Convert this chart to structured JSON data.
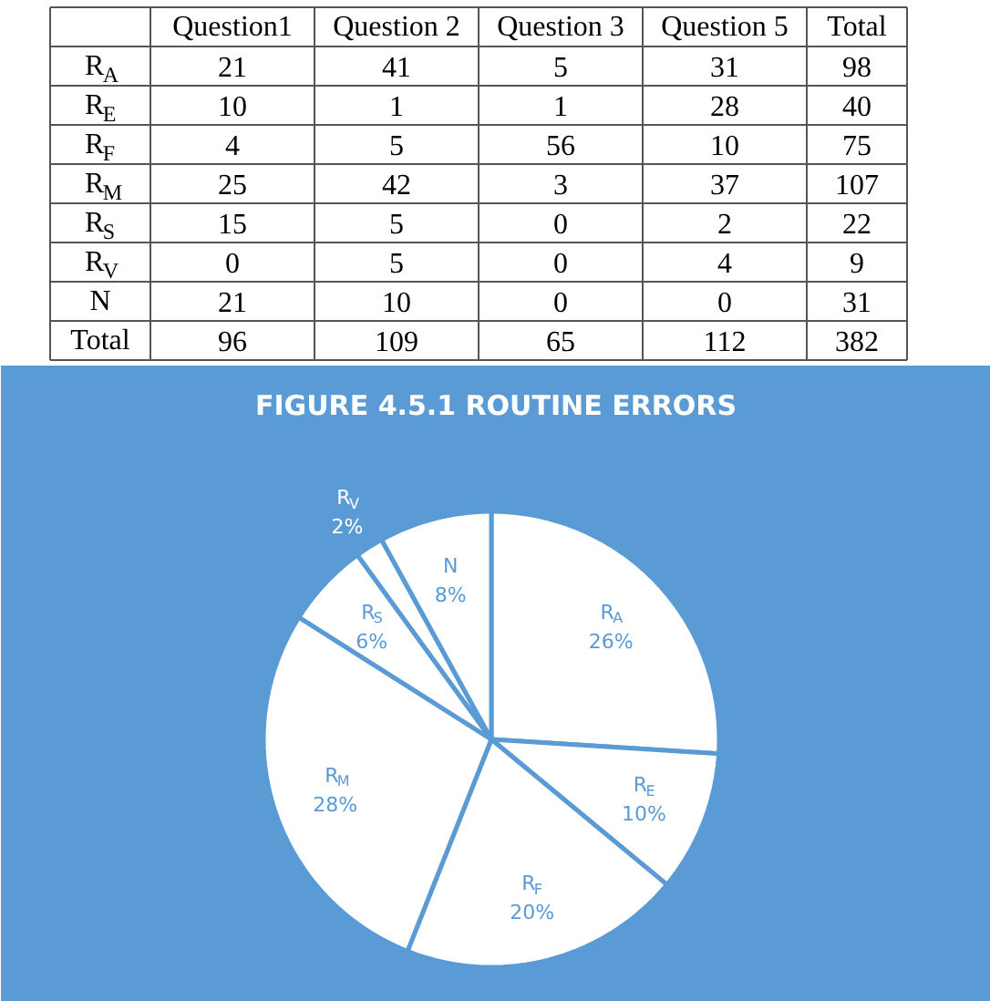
{
  "chart_data": [
    {
      "type": "heatmap",
      "categories": [
        "Question1",
        "Question 2",
        "Question 3",
        "Question 5",
        "Total"
      ],
      "y_categories": [
        "R$_{A}$",
        "R$_{E}$",
        "R$_{F}$",
        "R$_{M}$",
        "R$_{S}$",
        "R$_{V}$",
        "N",
        "Total"
      ],
      "cells": [
        [
          21,
          41,
          5,
          31,
          98
        ],
        [
          10,
          1,
          1,
          28,
          40
        ],
        [
          4,
          5,
          56,
          10,
          75
        ],
        [
          25,
          42,
          3,
          37,
          107
        ],
        [
          15,
          5,
          0,
          2,
          22
        ],
        [
          0,
          5,
          0,
          4,
          9
        ],
        [
          21,
          10,
          0,
          0,
          31
        ],
        [
          96,
          109,
          65,
          112,
          382
        ]
      ],
      "data_labels": true
    },
    {
      "type": "pie",
      "title": "FIGURE 4.5.1 ROUTINE ERRORS",
      "categories": [
        "R$_{A}$",
        "R$_{E}$",
        "R$_{F}$",
        "R$_{M}$",
        "R$_{S}$",
        "R$_{V}$",
        "N"
      ],
      "values": [
        26,
        10,
        20,
        28,
        6,
        2,
        8
      ],
      "colors": [
        "#ffffff",
        "#ffffff",
        "#ffffff",
        "#ffffff",
        "#ffffff",
        "#ffffff",
        "#ffffff"
      ],
      "value_labels": [
        "26%",
        "10%",
        "20%",
        "28%",
        "6%",
        "2%",
        "8%"
      ]
    }
  ]
}
